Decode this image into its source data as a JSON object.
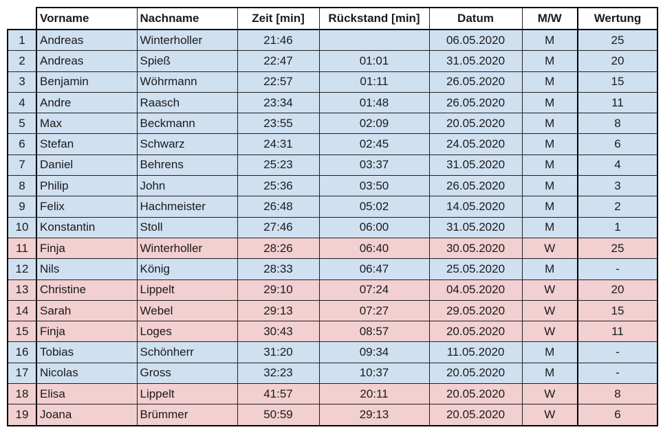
{
  "colors": {
    "male_row": "#cfe0f1",
    "female_row": "#f2cfd0",
    "border": "#1f1f1f"
  },
  "headers": {
    "first": "Vorname",
    "last": "Nachname",
    "time": "Zeit [min]",
    "gap": "Rückstand [min]",
    "date": "Datum",
    "gender": "M/W",
    "score": "Wertung"
  },
  "rows": [
    {
      "rank": "1",
      "first": "Andreas",
      "last": "Winterholler",
      "time": "21:46",
      "gap": "",
      "date": "06.05.2020",
      "gender": "M",
      "score": "25"
    },
    {
      "rank": "2",
      "first": "Andreas",
      "last": "Spieß",
      "time": "22:47",
      "gap": "01:01",
      "date": "31.05.2020",
      "gender": "M",
      "score": "20"
    },
    {
      "rank": "3",
      "first": "Benjamin",
      "last": "Wöhrmann",
      "time": "22:57",
      "gap": "01:11",
      "date": "26.05.2020",
      "gender": "M",
      "score": "15"
    },
    {
      "rank": "4",
      "first": "Andre",
      "last": "Raasch",
      "time": "23:34",
      "gap": "01:48",
      "date": "26.05.2020",
      "gender": "M",
      "score": "11"
    },
    {
      "rank": "5",
      "first": "Max",
      "last": "Beckmann",
      "time": "23:55",
      "gap": "02:09",
      "date": "20.05.2020",
      "gender": "M",
      "score": "8"
    },
    {
      "rank": "6",
      "first": "Stefan",
      "last": "Schwarz",
      "time": "24:31",
      "gap": "02:45",
      "date": "24.05.2020",
      "gender": "M",
      "score": "6"
    },
    {
      "rank": "7",
      "first": "Daniel",
      "last": "Behrens",
      "time": "25:23",
      "gap": "03:37",
      "date": "31.05.2020",
      "gender": "M",
      "score": "4"
    },
    {
      "rank": "8",
      "first": "Philip",
      "last": "John",
      "time": "25:36",
      "gap": "03:50",
      "date": "26.05.2020",
      "gender": "M",
      "score": "3"
    },
    {
      "rank": "9",
      "first": "Felix",
      "last": "Hachmeister",
      "time": "26:48",
      "gap": "05:02",
      "date": "14.05.2020",
      "gender": "M",
      "score": "2"
    },
    {
      "rank": "10",
      "first": "Konstantin",
      "last": "Stoll",
      "time": "27:46",
      "gap": "06:00",
      "date": "31.05.2020",
      "gender": "M",
      "score": "1"
    },
    {
      "rank": "11",
      "first": "Finja",
      "last": "Winterholler",
      "time": "28:26",
      "gap": "06:40",
      "date": "30.05.2020",
      "gender": "W",
      "score": "25"
    },
    {
      "rank": "12",
      "first": "Nils",
      "last": "König",
      "time": "28:33",
      "gap": "06:47",
      "date": "25.05.2020",
      "gender": "M",
      "score": "-"
    },
    {
      "rank": "13",
      "first": "Christine",
      "last": "Lippelt",
      "time": "29:10",
      "gap": "07:24",
      "date": "04.05.2020",
      "gender": "W",
      "score": "20"
    },
    {
      "rank": "14",
      "first": "Sarah",
      "last": "Webel",
      "time": "29:13",
      "gap": "07:27",
      "date": "29.05.2020",
      "gender": "W",
      "score": "15"
    },
    {
      "rank": "15",
      "first": "Finja",
      "last": "Loges",
      "time": "30:43",
      "gap": "08:57",
      "date": "20.05.2020",
      "gender": "W",
      "score": "11"
    },
    {
      "rank": "16",
      "first": "Tobias",
      "last": "Schönherr",
      "time": "31:20",
      "gap": "09:34",
      "date": "11.05.2020",
      "gender": "M",
      "score": "-"
    },
    {
      "rank": "17",
      "first": "Nicolas",
      "last": "Gross",
      "time": "32:23",
      "gap": "10:37",
      "date": "20.05.2020",
      "gender": "M",
      "score": "-"
    },
    {
      "rank": "18",
      "first": "Elisa",
      "last": "Lippelt",
      "time": "41:57",
      "gap": "20:11",
      "date": "20.05.2020",
      "gender": "W",
      "score": "8"
    },
    {
      "rank": "19",
      "first": "Joana",
      "last": "Brümmer",
      "time": "50:59",
      "gap": "29:13",
      "date": "20.05.2020",
      "gender": "W",
      "score": "6"
    }
  ]
}
